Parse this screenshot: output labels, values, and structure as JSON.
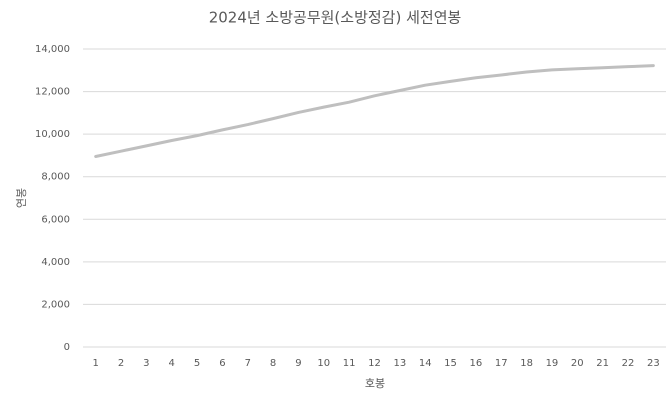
{
  "chart_data": {
    "type": "line",
    "title": "2024년 소방공무원(소방정감) 세전연봉",
    "x_label": "호봉",
    "y_label": "연봉",
    "categories": [
      "1",
      "2",
      "3",
      "4",
      "5",
      "6",
      "7",
      "8",
      "9",
      "10",
      "11",
      "12",
      "13",
      "14",
      "15",
      "16",
      "17",
      "18",
      "19",
      "20",
      "21",
      "22",
      "23"
    ],
    "series": [
      {
        "name": "연봉",
        "color": "#bfbfbf",
        "values": [
          8950,
          9200,
          9450,
          9700,
          9930,
          10200,
          10450,
          10730,
          11020,
          11270,
          11500,
          11800,
          12050,
          12300,
          12480,
          12650,
          12780,
          12920,
          13020,
          13070,
          13120,
          13170,
          13220
        ]
      }
    ],
    "ylim": [
      0,
      14000
    ],
    "yticks": [
      0,
      {
        "value": 2000,
        "label": "2,000"
      },
      {
        "value": 4000,
        "label": "4,000"
      },
      {
        "value": 6000,
        "label": "6,000"
      },
      {
        "value": 8000,
        "label": "8,000"
      },
      {
        "value": 10000,
        "label": "10,000"
      },
      {
        "value": 12000,
        "label": "12,000"
      },
      {
        "value": 14000,
        "label": "14,000"
      }
    ],
    "grid": true
  }
}
